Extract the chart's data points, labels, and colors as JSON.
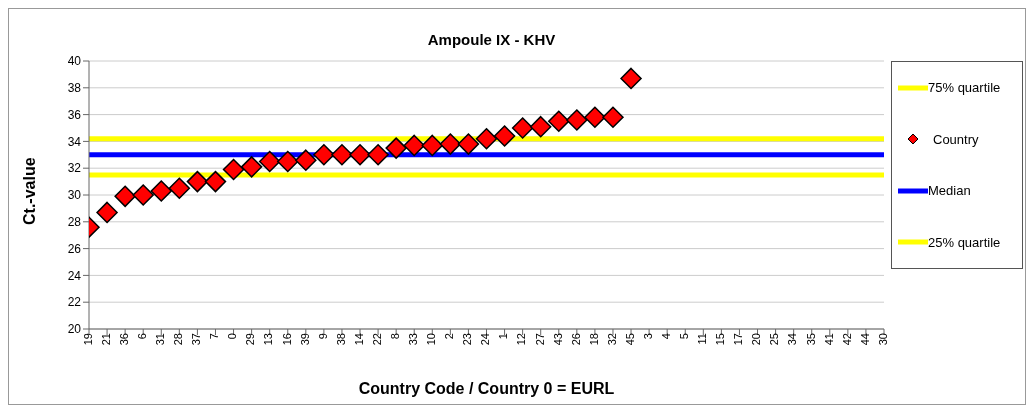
{
  "chart_data": {
    "type": "scatter",
    "title": "Ampoule IX - KHV",
    "xlabel": "Country Code / Country 0 = EURL",
    "ylabel": "Ct.-value",
    "categories": [
      "19",
      "21",
      "36",
      "6",
      "31",
      "28",
      "37",
      "7",
      "0",
      "29",
      "13",
      "16",
      "39",
      "9",
      "38",
      "14",
      "22",
      "8",
      "33",
      "10",
      "2",
      "23",
      "24",
      "1",
      "12",
      "27",
      "43",
      "26",
      "18",
      "32",
      "45",
      "3",
      "4",
      "5",
      "11",
      "15",
      "17",
      "20",
      "25",
      "34",
      "35",
      "41",
      "42",
      "44",
      "30"
    ],
    "series": [
      {
        "name": "Country",
        "color": "#ff0000",
        "values": [
          27.6,
          28.7,
          29.9,
          30.0,
          30.3,
          30.5,
          31.0,
          31.0,
          31.9,
          32.1,
          32.5,
          32.5,
          32.6,
          33.0,
          33.0,
          33.0,
          33.0,
          33.5,
          33.7,
          33.7,
          33.8,
          33.8,
          34.2,
          34.4,
          35.0,
          35.1,
          35.5,
          35.6,
          35.8,
          35.8,
          38.7,
          null,
          null,
          null,
          null,
          null,
          null,
          null,
          null,
          null,
          null,
          null,
          null,
          null,
          null
        ]
      }
    ],
    "ref_lines": [
      {
        "axis": "y",
        "value": 34.2,
        "label": "75% quartile",
        "color": "#ffff00"
      },
      {
        "axis": "y",
        "value": 33.0,
        "label": "Median",
        "color": "#0000ff"
      },
      {
        "axis": "y",
        "value": 31.5,
        "label": "25% quartile",
        "color": "#ffff00"
      }
    ],
    "ylim": [
      20,
      40
    ],
    "yticks": [
      20,
      22,
      24,
      26,
      28,
      30,
      32,
      34,
      36,
      38,
      40
    ],
    "grid": "y",
    "legend": "right",
    "marker": "diamond"
  }
}
